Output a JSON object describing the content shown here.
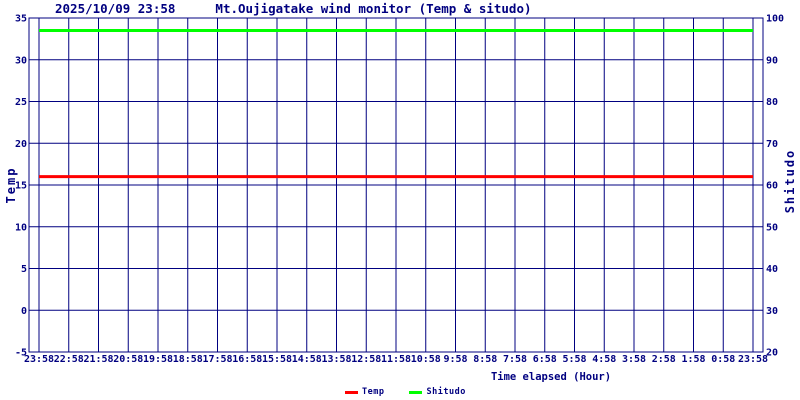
{
  "header": {
    "datetime": "2025/10/09 23:58",
    "title": "Mt.Oujigatake wind monitor (Temp & situdo)"
  },
  "colors": {
    "text": "#000080",
    "grid": "#000080",
    "frame": "#000080",
    "background": "#ffffff",
    "temp": "#ff0000",
    "shitudo": "#00ff00"
  },
  "legend": {
    "items": [
      {
        "label": "Temp",
        "color": "#ff0000"
      },
      {
        "label": "Shitudo",
        "color": "#00ff00"
      }
    ]
  },
  "chart_data": {
    "type": "line",
    "title": "2025/10/09 23:58    Mt.Oujigatake wind monitor (Temp & situdo)",
    "xlabel": "Time elapsed (Hour)",
    "ylabel_left": "Temp",
    "ylabel_right": "Shitudo",
    "grid": true,
    "legend_position": "bottom",
    "x_tick_labels": [
      "23:58",
      "22:58",
      "21:58",
      "20:58",
      "19:58",
      "18:58",
      "17:58",
      "16:58",
      "15:58",
      "14:58",
      "13:58",
      "12:58",
      "11:58",
      "10:58",
      "9:58",
      "8:58",
      "7:58",
      "6:58",
      "5:58",
      "4:58",
      "3:58",
      "2:58",
      "1:58",
      "0:58",
      "23:58"
    ],
    "y_left": {
      "min": -5,
      "max": 35,
      "tick_step": 5,
      "ticks": [
        35,
        30,
        25,
        20,
        15,
        10,
        5,
        0,
        -5
      ]
    },
    "y_right": {
      "min": 20,
      "max": 100,
      "tick_step": 10,
      "ticks": [
        100,
        90,
        80,
        70,
        60,
        50,
        40,
        30,
        20
      ]
    },
    "series": [
      {
        "name": "Temp",
        "axis": "left",
        "color": "#ff0000",
        "values": [
          16,
          16,
          16,
          16,
          16,
          16,
          16,
          16,
          16,
          16,
          16,
          16,
          16,
          16,
          16,
          16,
          16,
          16,
          16,
          16,
          16,
          16,
          16,
          16,
          16
        ]
      },
      {
        "name": "Shitudo",
        "axis": "right",
        "color": "#00ff00",
        "values": [
          97,
          97,
          97,
          97,
          97,
          97,
          97,
          97,
          97,
          97,
          97,
          97,
          97,
          97,
          97,
          97,
          97,
          97,
          97,
          97,
          97,
          97,
          97,
          97,
          97
        ]
      }
    ]
  }
}
